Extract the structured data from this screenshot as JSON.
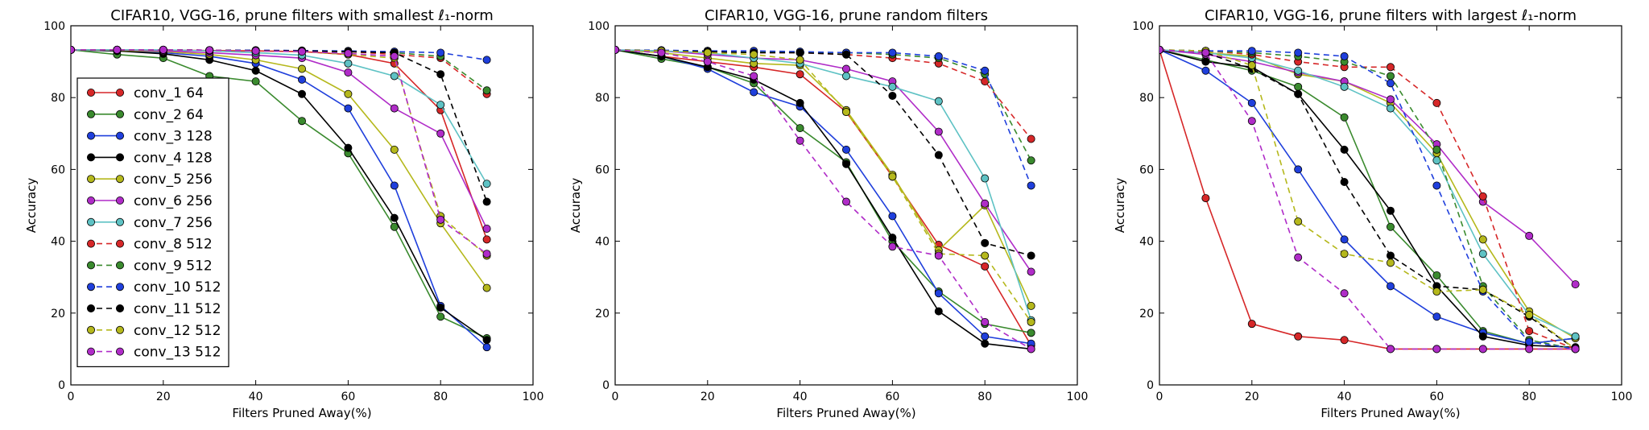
{
  "figure": {
    "panels": [
      {
        "title": "CIFAR10, VGG-16, prune filters with smallest ℓ₁-norm"
      },
      {
        "title": "CIFAR10, VGG-16, prune random filters"
      },
      {
        "title": "CIFAR10, VGG-16, prune filters with largest ℓ₁-norm"
      }
    ]
  },
  "chart_data": [
    {
      "type": "line",
      "title": "CIFAR10, VGG-16, prune filters with smallest ℓ₁-norm",
      "xlabel": "Filters Pruned Away(%)",
      "ylabel": "Accuracy",
      "xlim": [
        0,
        100
      ],
      "ylim": [
        0,
        100
      ],
      "xticks": [
        0,
        20,
        40,
        60,
        80,
        100
      ],
      "yticks": [
        0,
        20,
        40,
        60,
        80,
        100
      ],
      "grid": false,
      "legend_position": "bottom-left",
      "x": [
        0,
        10,
        20,
        30,
        40,
        50,
        60,
        70,
        80,
        90
      ],
      "series": [
        {
          "name": "conv_1 64",
          "color": "#d62728",
          "dashed": false,
          "values": [
            93.3,
            93.3,
            93.2,
            93.1,
            93.0,
            92.8,
            92.0,
            89.5,
            76.5,
            40.5
          ]
        },
        {
          "name": "conv_2 64",
          "color": "#3a8a2e",
          "dashed": false,
          "values": [
            93.3,
            92.0,
            91.0,
            86.0,
            84.5,
            73.5,
            64.5,
            44.0,
            19.0,
            13.0
          ]
        },
        {
          "name": "conv_3 128",
          "color": "#1f3fdc",
          "dashed": false,
          "values": [
            93.3,
            93.0,
            92.5,
            91.5,
            89.5,
            85.0,
            77.0,
            55.5,
            22.0,
            10.5
          ]
        },
        {
          "name": "conv_4 128",
          "color": "#000000",
          "dashed": false,
          "values": [
            93.3,
            93.0,
            92.2,
            90.5,
            87.5,
            81.0,
            66.0,
            46.5,
            21.5,
            12.5
          ]
        },
        {
          "name": "conv_5 256",
          "color": "#b5b81c",
          "dashed": false,
          "values": [
            93.3,
            93.2,
            92.8,
            92.0,
            90.5,
            88.0,
            81.0,
            65.5,
            45.0,
            27.0
          ]
        },
        {
          "name": "conv_6 256",
          "color": "#b02cc8",
          "dashed": false,
          "values": [
            93.3,
            93.3,
            93.0,
            92.5,
            91.8,
            91.0,
            87.0,
            77.0,
            70.0,
            43.5
          ]
        },
        {
          "name": "conv_7 256",
          "color": "#5ec2c4",
          "dashed": false,
          "values": [
            93.3,
            93.3,
            93.3,
            93.0,
            92.5,
            91.8,
            89.5,
            86.0,
            78.0,
            56.0
          ]
        },
        {
          "name": "conv_8 512",
          "color": "#d62728",
          "dashed": true,
          "values": [
            93.3,
            93.3,
            93.3,
            93.2,
            93.1,
            93.0,
            92.8,
            92.0,
            91.0,
            81.0
          ]
        },
        {
          "name": "conv_9 512",
          "color": "#3a8a2e",
          "dashed": true,
          "values": [
            93.3,
            93.3,
            93.3,
            93.2,
            93.1,
            93.0,
            92.8,
            92.5,
            91.5,
            82.0
          ]
        },
        {
          "name": "conv_10 512",
          "color": "#1f3fdc",
          "dashed": true,
          "values": [
            93.3,
            93.3,
            93.3,
            93.2,
            93.2,
            93.1,
            93.0,
            92.8,
            92.5,
            90.5
          ]
        },
        {
          "name": "conv_11 512",
          "color": "#000000",
          "dashed": true,
          "values": [
            93.3,
            93.3,
            93.3,
            93.2,
            93.1,
            93.0,
            92.8,
            92.5,
            86.5,
            51.0
          ]
        },
        {
          "name": "conv_12 512",
          "color": "#b5b81c",
          "dashed": true,
          "values": [
            93.3,
            93.3,
            93.3,
            93.2,
            93.0,
            92.8,
            92.0,
            91.0,
            47.0,
            36.0
          ]
        },
        {
          "name": "conv_13 512",
          "color": "#b02cc8",
          "dashed": true,
          "values": [
            93.3,
            93.3,
            93.3,
            93.2,
            93.0,
            92.8,
            92.3,
            91.5,
            46.0,
            36.5
          ]
        }
      ]
    },
    {
      "type": "line",
      "title": "CIFAR10, VGG-16, prune random filters",
      "xlabel": "Filters Pruned Away(%)",
      "ylabel": "Accuracy",
      "xlim": [
        0,
        100
      ],
      "ylim": [
        0,
        100
      ],
      "xticks": [
        0,
        20,
        40,
        60,
        80,
        100
      ],
      "yticks": [
        0,
        20,
        40,
        60,
        80,
        100
      ],
      "grid": false,
      "x": [
        0,
        10,
        20,
        30,
        40,
        50,
        60,
        70,
        80,
        90
      ],
      "series": [
        {
          "name": "conv_1 64",
          "color": "#d62728",
          "dashed": false,
          "values": [
            93.3,
            91.5,
            90.0,
            88.5,
            86.5,
            76.0,
            58.0,
            39.0,
            33.0,
            11.0
          ]
        },
        {
          "name": "conv_2 64",
          "color": "#3a8a2e",
          "dashed": false,
          "values": [
            93.3,
            90.8,
            88.5,
            84.0,
            71.5,
            62.0,
            40.0,
            26.0,
            17.0,
            14.5
          ]
        },
        {
          "name": "conv_3 128",
          "color": "#1f3fdc",
          "dashed": false,
          "values": [
            93.3,
            91.5,
            88.0,
            81.5,
            77.5,
            65.5,
            47.0,
            25.5,
            13.5,
            11.5
          ]
        },
        {
          "name": "conv_4 128",
          "color": "#000000",
          "dashed": false,
          "values": [
            93.3,
            91.5,
            88.5,
            85.0,
            78.5,
            61.5,
            41.0,
            20.5,
            11.5,
            10.0
          ]
        },
        {
          "name": "conv_5 256",
          "color": "#b5b81c",
          "dashed": false,
          "values": [
            93.3,
            92.5,
            91.0,
            89.5,
            89.0,
            76.5,
            58.5,
            37.5,
            50.0,
            22.0
          ]
        },
        {
          "name": "conv_6 256",
          "color": "#b02cc8",
          "dashed": false,
          "values": [
            93.3,
            93.0,
            92.0,
            91.0,
            90.5,
            88.0,
            84.5,
            70.5,
            50.5,
            31.5
          ]
        },
        {
          "name": "conv_7 256",
          "color": "#5ec2c4",
          "dashed": false,
          "values": [
            93.3,
            93.0,
            92.5,
            91.0,
            89.5,
            86.0,
            83.0,
            79.0,
            57.5,
            18.0
          ]
        },
        {
          "name": "conv_8 512",
          "color": "#d62728",
          "dashed": true,
          "values": [
            93.3,
            93.0,
            93.0,
            92.5,
            92.5,
            92.0,
            91.0,
            89.5,
            84.5,
            68.5
          ]
        },
        {
          "name": "conv_9 512",
          "color": "#3a8a2e",
          "dashed": true,
          "values": [
            93.3,
            93.0,
            93.0,
            92.8,
            92.5,
            92.5,
            92.0,
            91.0,
            86.5,
            62.5
          ]
        },
        {
          "name": "conv_10 512",
          "color": "#1f3fdc",
          "dashed": true,
          "values": [
            93.3,
            93.2,
            93.0,
            93.0,
            92.8,
            92.5,
            92.5,
            91.5,
            87.5,
            55.5
          ]
        },
        {
          "name": "conv_11 512",
          "color": "#000000",
          "dashed": true,
          "values": [
            93.3,
            93.0,
            92.8,
            92.5,
            92.5,
            92.0,
            80.5,
            64.0,
            39.5,
            36.0
          ]
        },
        {
          "name": "conv_12 512",
          "color": "#b5b81c",
          "dashed": true,
          "values": [
            93.3,
            93.0,
            92.5,
            92.0,
            90.5,
            76.0,
            58.0,
            36.5,
            36.0,
            17.5
          ]
        },
        {
          "name": "conv_13 512",
          "color": "#b02cc8",
          "dashed": true,
          "values": [
            93.3,
            92.5,
            90.0,
            86.0,
            68.0,
            51.0,
            38.5,
            36.0,
            17.5,
            10.0
          ]
        }
      ]
    },
    {
      "type": "line",
      "title": "CIFAR10, VGG-16, prune filters with largest ℓ₁-norm",
      "xlabel": "Filters Pruned Away(%)",
      "ylabel": "Accuracy",
      "xlim": [
        0,
        100
      ],
      "ylim": [
        0,
        100
      ],
      "xticks": [
        0,
        20,
        40,
        60,
        80,
        100
      ],
      "yticks": [
        0,
        20,
        40,
        60,
        80,
        100
      ],
      "grid": false,
      "x": [
        0,
        10,
        20,
        30,
        40,
        50,
        60,
        70,
        80,
        90
      ],
      "series": [
        {
          "name": "conv_1 64",
          "color": "#d62728",
          "dashed": false,
          "values": [
            93.3,
            52.0,
            17.0,
            13.5,
            12.5,
            10.0,
            10.0,
            10.0,
            10.0,
            10.0
          ]
        },
        {
          "name": "conv_2 64",
          "color": "#3a8a2e",
          "dashed": false,
          "values": [
            93.3,
            90.5,
            87.5,
            83.0,
            74.5,
            44.0,
            30.5,
            15.0,
            11.5,
            13.0
          ]
        },
        {
          "name": "conv_3 128",
          "color": "#1f3fdc",
          "dashed": false,
          "values": [
            93.3,
            87.5,
            78.5,
            60.0,
            40.5,
            27.5,
            19.0,
            14.5,
            11.5,
            13.0
          ]
        },
        {
          "name": "conv_4 128",
          "color": "#000000",
          "dashed": false,
          "values": [
            93.3,
            90.0,
            88.5,
            81.0,
            65.5,
            48.5,
            27.5,
            13.5,
            11.0,
            10.5
          ]
        },
        {
          "name": "conv_5 256",
          "color": "#b5b81c",
          "dashed": false,
          "values": [
            93.3,
            92.5,
            91.5,
            86.5,
            84.5,
            78.5,
            64.5,
            40.5,
            20.5,
            13.0
          ]
        },
        {
          "name": "conv_6 256",
          "color": "#b02cc8",
          "dashed": false,
          "values": [
            93.3,
            92.0,
            90.0,
            87.0,
            84.5,
            79.5,
            67.0,
            51.0,
            41.5,
            28.0
          ]
        },
        {
          "name": "conv_7 256",
          "color": "#5ec2c4",
          "dashed": false,
          "values": [
            93.3,
            92.5,
            91.0,
            87.5,
            83.0,
            77.0,
            62.5,
            36.5,
            19.5,
            13.5
          ]
        },
        {
          "name": "conv_8 512",
          "color": "#d62728",
          "dashed": true,
          "values": [
            93.3,
            93.0,
            92.0,
            90.0,
            88.5,
            88.5,
            78.5,
            52.5,
            15.0,
            10.0
          ]
        },
        {
          "name": "conv_9 512",
          "color": "#3a8a2e",
          "dashed": true,
          "values": [
            93.3,
            93.0,
            92.5,
            91.5,
            90.0,
            86.0,
            65.5,
            27.5,
            12.5,
            10.0
          ]
        },
        {
          "name": "conv_10 512",
          "color": "#1f3fdc",
          "dashed": true,
          "values": [
            93.3,
            93.0,
            93.0,
            92.5,
            91.5,
            84.0,
            55.5,
            26.0,
            12.0,
            10.0
          ]
        },
        {
          "name": "conv_11 512",
          "color": "#000000",
          "dashed": true,
          "values": [
            93.3,
            92.5,
            88.0,
            81.0,
            56.5,
            36.0,
            27.5,
            26.5,
            19.0,
            10.0
          ]
        },
        {
          "name": "conv_12 512",
          "color": "#b5b81c",
          "dashed": true,
          "values": [
            93.3,
            93.0,
            89.0,
            45.5,
            36.5,
            34.0,
            26.0,
            26.5,
            19.5,
            10.0
          ]
        },
        {
          "name": "conv_13 512",
          "color": "#b02cc8",
          "dashed": true,
          "values": [
            93.3,
            92.5,
            73.5,
            35.5,
            25.5,
            10.0,
            10.0,
            10.0,
            10.0,
            10.0
          ]
        }
      ]
    }
  ]
}
